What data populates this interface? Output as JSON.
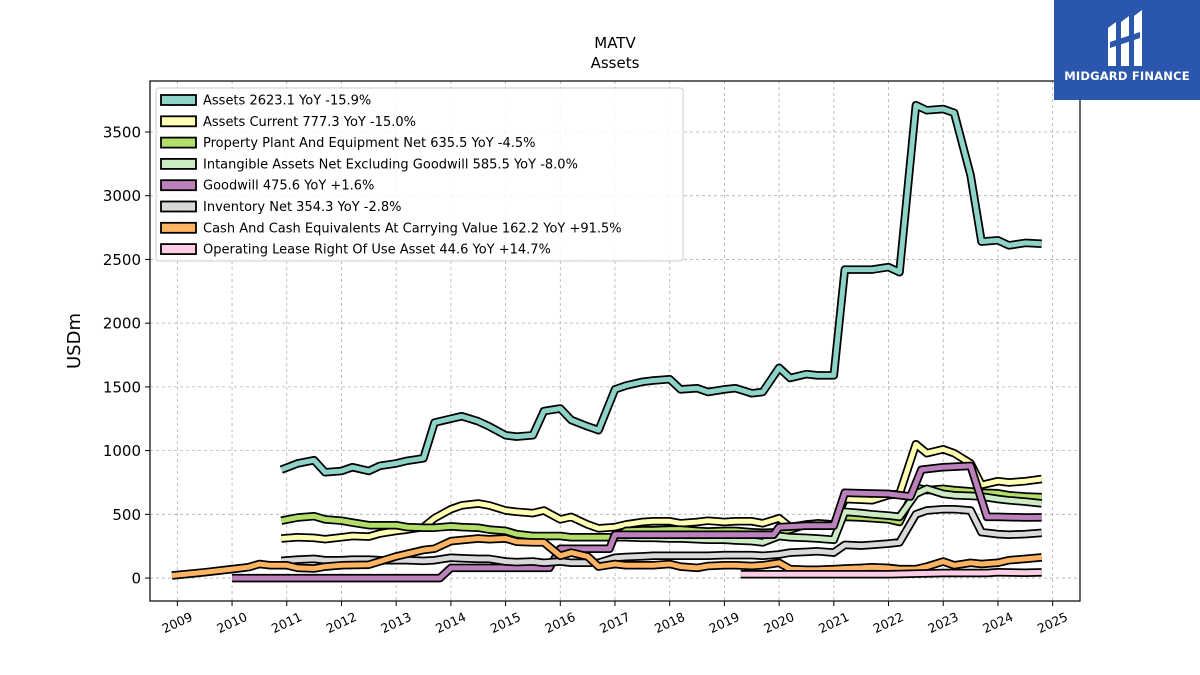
{
  "chart_data": {
    "type": "line",
    "title": "MATV",
    "subtitle": "Assets",
    "xlabel": "",
    "ylabel": "USDm",
    "xlim": [
      2008.5,
      2025.5
    ],
    "ylim": [
      -180,
      3900
    ],
    "x_ticks": [
      "2009",
      "2010",
      "2011",
      "2012",
      "2013",
      "2014",
      "2015",
      "2016",
      "2017",
      "2018",
      "2019",
      "2020",
      "2021",
      "2022",
      "2023",
      "2024",
      "2025"
    ],
    "y_ticks": [
      "0",
      "500",
      "1000",
      "1500",
      "2000",
      "2500",
      "3000",
      "3500"
    ],
    "grid": true,
    "legend_position": "top-left",
    "series": [
      {
        "name": "Assets",
        "legend": "Assets  2623.1 YoY -15.9%",
        "color": "#8dd3c7",
        "x": [
          2010.9,
          2011.2,
          2011.5,
          2011.7,
          2012.0,
          2012.2,
          2012.5,
          2012.7,
          2013.0,
          2013.2,
          2013.5,
          2013.7,
          2014.0,
          2014.2,
          2014.5,
          2014.7,
          2015.0,
          2015.2,
          2015.5,
          2015.7,
          2016.0,
          2016.2,
          2016.5,
          2016.7,
          2017.0,
          2017.2,
          2017.5,
          2017.7,
          2018.0,
          2018.2,
          2018.5,
          2018.7,
          2019.0,
          2019.2,
          2019.5,
          2019.7,
          2020.0,
          2020.2,
          2020.5,
          2020.7,
          2021.0,
          2021.2,
          2021.5,
          2021.7,
          2022.0,
          2022.2,
          2022.5,
          2022.7,
          2023.0,
          2023.2,
          2023.5,
          2023.7,
          2024.0,
          2024.2,
          2024.5,
          2024.8
        ],
        "y": [
          850,
          900,
          925,
          830,
          840,
          870,
          840,
          880,
          900,
          920,
          940,
          1220,
          1250,
          1270,
          1230,
          1190,
          1120,
          1110,
          1120,
          1310,
          1330,
          1240,
          1190,
          1160,
          1480,
          1510,
          1540,
          1550,
          1560,
          1480,
          1490,
          1460,
          1480,
          1490,
          1450,
          1460,
          1650,
          1570,
          1600,
          1590,
          1590,
          2420,
          2420,
          2420,
          2440,
          2400,
          3710,
          3670,
          3680,
          3650,
          3160,
          2640,
          2650,
          2610,
          2630,
          2623.1
        ]
      },
      {
        "name": "Assets Current",
        "legend": "Assets Current  777.3 YoY -15.0%",
        "color": "#ffffb3",
        "x": [
          2010.9,
          2011.2,
          2011.5,
          2011.7,
          2012.0,
          2012.2,
          2012.5,
          2012.7,
          2013.0,
          2013.2,
          2013.5,
          2013.7,
          2014.0,
          2014.2,
          2014.5,
          2014.7,
          2015.0,
          2015.2,
          2015.5,
          2015.7,
          2016.0,
          2016.2,
          2016.5,
          2016.7,
          2017.0,
          2017.2,
          2017.5,
          2017.7,
          2018.0,
          2018.2,
          2018.5,
          2018.7,
          2019.0,
          2019.2,
          2019.5,
          2019.7,
          2020.0,
          2020.2,
          2020.5,
          2020.7,
          2021.0,
          2021.2,
          2021.5,
          2021.7,
          2022.0,
          2022.2,
          2022.5,
          2022.7,
          2023.0,
          2023.2,
          2023.5,
          2023.7,
          2024.0,
          2024.2,
          2024.5,
          2024.8
        ],
        "y": [
          310,
          320,
          315,
          305,
          320,
          330,
          325,
          350,
          370,
          380,
          400,
          470,
          540,
          570,
          585,
          570,
          530,
          520,
          510,
          530,
          460,
          480,
          420,
          390,
          400,
          420,
          440,
          445,
          445,
          430,
          440,
          450,
          440,
          445,
          445,
          430,
          470,
          400,
          420,
          420,
          420,
          620,
          615,
          610,
          650,
          660,
          1050,
          980,
          1010,
          980,
          900,
          730,
          760,
          750,
          760,
          777.3
        ]
      },
      {
        "name": "Property Plant And Equipment Net",
        "legend": "Property Plant And Equipment Net  635.5 YoY -4.5%",
        "color": "#b3de69",
        "x": [
          2010.9,
          2011.2,
          2011.5,
          2011.7,
          2012.0,
          2012.2,
          2012.5,
          2012.7,
          2013.0,
          2013.2,
          2013.5,
          2013.7,
          2014.0,
          2014.2,
          2014.5,
          2014.7,
          2015.0,
          2015.2,
          2015.5,
          2015.7,
          2016.0,
          2016.2,
          2016.5,
          2016.7,
          2017.0,
          2017.2,
          2017.5,
          2017.7,
          2018.0,
          2018.2,
          2018.5,
          2018.7,
          2019.0,
          2019.2,
          2019.5,
          2019.7,
          2020.0,
          2020.2,
          2020.5,
          2020.7,
          2021.0,
          2021.2,
          2021.5,
          2021.7,
          2022.0,
          2022.2,
          2022.5,
          2022.7,
          2023.0,
          2023.2,
          2023.5,
          2023.7,
          2024.0,
          2024.2,
          2024.5,
          2024.8
        ],
        "y": [
          450,
          475,
          485,
          460,
          450,
          435,
          415,
          415,
          415,
          400,
          395,
          395,
          405,
          400,
          395,
          380,
          370,
          345,
          330,
          330,
          330,
          320,
          320,
          320,
          320,
          370,
          375,
          375,
          380,
          380,
          370,
          365,
          370,
          370,
          360,
          355,
          360,
          380,
          420,
          430,
          420,
          480,
          475,
          470,
          460,
          440,
          710,
          690,
          700,
          690,
          680,
          670,
          665,
          650,
          640,
          635.5
        ]
      },
      {
        "name": "Intangible Assets Net Excluding Goodwill",
        "legend": "Intangible Assets Net Excluding Goodwill  585.5 YoY -8.0%",
        "color": "#ccebc5",
        "x": [
          2017.0,
          2017.2,
          2017.5,
          2017.7,
          2018.0,
          2018.2,
          2018.5,
          2018.7,
          2019.0,
          2019.2,
          2019.5,
          2019.7,
          2020.0,
          2020.2,
          2020.5,
          2020.7,
          2021.0,
          2021.2,
          2021.5,
          2021.7,
          2022.0,
          2022.2,
          2022.5,
          2022.7,
          2023.0,
          2023.2,
          2023.5,
          2023.7,
          2024.0,
          2024.2,
          2024.5,
          2024.8
        ],
        "y": [
          320,
          320,
          315,
          315,
          310,
          310,
          305,
          300,
          300,
          295,
          290,
          280,
          330,
          320,
          315,
          310,
          300,
          520,
          510,
          500,
          490,
          480,
          660,
          700,
          660,
          650,
          645,
          640,
          620,
          610,
          600,
          585.5
        ]
      },
      {
        "name": "Goodwill",
        "legend": "Goodwill  475.6 YoY +1.6%",
        "color": "#bc80bd",
        "x": [
          2010.0,
          2010.5,
          2011.0,
          2011.5,
          2012.0,
          2012.5,
          2013.0,
          2013.5,
          2013.8,
          2014.0,
          2014.5,
          2015.0,
          2015.5,
          2015.8,
          2016.0,
          2016.5,
          2016.9,
          2017.0,
          2017.5,
          2018.0,
          2018.5,
          2019.0,
          2019.5,
          2019.9,
          2020.0,
          2020.5,
          2021.0,
          2021.2,
          2021.5,
          2022.0,
          2022.4,
          2022.6,
          2023.0,
          2023.5,
          2023.8,
          2024.0,
          2024.5,
          2024.8
        ],
        "y": [
          0,
          0,
          0,
          0,
          0,
          0,
          0,
          0,
          0,
          80,
          80,
          80,
          80,
          80,
          230,
          230,
          230,
          340,
          340,
          340,
          340,
          340,
          340,
          340,
          400,
          410,
          410,
          670,
          665,
          660,
          640,
          850,
          870,
          880,
          480,
          480,
          475,
          475.6
        ]
      },
      {
        "name": "Inventory Net",
        "legend": "Inventory Net  354.3 YoY -2.8%",
        "color": "#d9d9d9",
        "x": [
          2010.9,
          2011.2,
          2011.5,
          2011.7,
          2012.0,
          2012.2,
          2012.5,
          2012.7,
          2013.0,
          2013.2,
          2013.5,
          2013.7,
          2014.0,
          2014.2,
          2014.5,
          2014.7,
          2015.0,
          2015.2,
          2015.5,
          2015.7,
          2016.0,
          2016.2,
          2016.5,
          2016.7,
          2017.0,
          2017.2,
          2017.5,
          2017.7,
          2018.0,
          2018.2,
          2018.5,
          2018.7,
          2019.0,
          2019.2,
          2019.5,
          2019.7,
          2020.0,
          2020.2,
          2020.5,
          2020.7,
          2021.0,
          2021.2,
          2021.5,
          2021.7,
          2022.0,
          2022.2,
          2022.5,
          2022.7,
          2023.0,
          2023.2,
          2023.5,
          2023.7,
          2024.0,
          2024.2,
          2024.5,
          2024.8
        ],
        "y": [
          135,
          145,
          150,
          140,
          140,
          145,
          145,
          140,
          140,
          140,
          135,
          140,
          160,
          155,
          150,
          150,
          130,
          125,
          130,
          120,
          130,
          120,
          120,
          120,
          160,
          165,
          170,
          175,
          175,
          175,
          175,
          175,
          180,
          180,
          180,
          175,
          185,
          200,
          205,
          210,
          200,
          260,
          255,
          260,
          270,
          280,
          500,
          530,
          540,
          540,
          530,
          360,
          345,
          340,
          345,
          354.3
        ]
      },
      {
        "name": "Cash And Cash Equivalents At Carrying Value",
        "legend": "Cash And Cash Equivalents At Carrying Value  162.2 YoY +91.5%",
        "color": "#fdb462",
        "x": [
          2008.9,
          2009.5,
          2010.0,
          2010.3,
          2010.5,
          2010.7,
          2011.0,
          2011.2,
          2011.5,
          2011.7,
          2012.0,
          2012.5,
          2013.0,
          2013.5,
          2013.7,
          2014.0,
          2014.5,
          2014.7,
          2015.0,
          2015.2,
          2015.5,
          2015.7,
          2016.0,
          2016.2,
          2016.5,
          2016.7,
          2017.0,
          2017.2,
          2017.5,
          2017.7,
          2018.0,
          2018.2,
          2018.5,
          2018.7,
          2019.0,
          2019.2,
          2019.5,
          2019.7,
          2020.0,
          2020.2,
          2020.5,
          2020.7,
          2021.0,
          2021.2,
          2021.5,
          2021.7,
          2022.0,
          2022.2,
          2022.5,
          2022.7,
          2023.0,
          2023.2,
          2023.5,
          2023.7,
          2024.0,
          2024.2,
          2024.5,
          2024.8
        ],
        "y": [
          20,
          45,
          70,
          85,
          110,
          100,
          100,
          80,
          75,
          90,
          100,
          105,
          170,
          220,
          230,
          290,
          310,
          305,
          310,
          285,
          280,
          280,
          175,
          200,
          170,
          90,
          110,
          100,
          100,
          100,
          110,
          90,
          80,
          95,
          100,
          100,
          95,
          100,
          120,
          70,
          65,
          65,
          70,
          75,
          80,
          85,
          80,
          70,
          70,
          90,
          130,
          100,
          120,
          110,
          120,
          140,
          150,
          162.2
        ]
      },
      {
        "name": "Operating Lease Right Of Use Asset",
        "legend": "Operating Lease Right Of Use Asset  44.6 YoY +14.7%",
        "color": "#fccde5",
        "x": [
          2019.3,
          2019.5,
          2020.0,
          2020.5,
          2021.0,
          2021.5,
          2022.0,
          2022.5,
          2023.0,
          2023.5,
          2023.8,
          2024.0,
          2024.5,
          2024.8
        ],
        "y": [
          30,
          30,
          30,
          30,
          30,
          30,
          30,
          35,
          40,
          40,
          40,
          45,
          42,
          44.6
        ]
      }
    ]
  },
  "logo": {
    "text": "MIDGARD FINANCE"
  }
}
